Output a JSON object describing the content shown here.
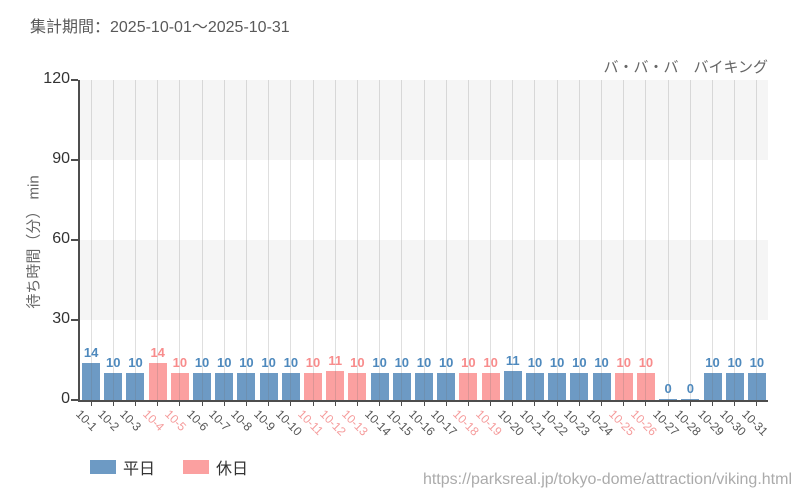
{
  "header": {
    "title": "集計期間：2025-10-01～2025-10-31"
  },
  "chart": {
    "attraction_title": "バ・バ・バ　バイキング",
    "y_axis_label": "待ち時間（分） min"
  },
  "legend": {
    "weekday_label": "平日",
    "holiday_label": "休日"
  },
  "footer": {
    "url": "https://parksreal.jp/tokyo-dome/attraction/viking.html"
  },
  "colors": {
    "weekday_bar": "#6d9ac4",
    "holiday_bar": "#fba0a0",
    "weekday_value_label": "#4e89bd",
    "holiday_value_label": "#f88c8c",
    "weekday_tick_label": "#555555",
    "holiday_tick_label": "#f59b9b",
    "axis": "#4d4d4d",
    "gridline": "rgba(110,110,110,0.22)",
    "band_gray": "#f5f5f5",
    "band_white": "#ffffff"
  },
  "chart_data": {
    "type": "bar",
    "title": "バ・バ・バ　バイキング",
    "xlabel": "",
    "ylabel": "待ち時間（分） min",
    "ylim": [
      0,
      120
    ],
    "y_ticks": [
      0,
      30,
      60,
      90,
      120
    ],
    "grid": {
      "vertical_lines_at_categories": true,
      "horizontal_bands_every": 30
    },
    "legend_position": "bottom-left",
    "legend": [
      {
        "label": "平日",
        "series": "weekday"
      },
      {
        "label": "休日",
        "series": "holiday"
      }
    ],
    "categories": [
      "10-1",
      "10-2",
      "10-3",
      "10-4",
      "10-5",
      "10-6",
      "10-7",
      "10-8",
      "10-9",
      "10-10",
      "10-11",
      "10-12",
      "10-13",
      "10-14",
      "10-15",
      "10-16",
      "10-17",
      "10-18",
      "10-19",
      "10-20",
      "10-21",
      "10-22",
      "10-23",
      "10-24",
      "10-25",
      "10-26",
      "10-27",
      "10-28",
      "10-29",
      "10-30",
      "10-31"
    ],
    "values": [
      14,
      10,
      10,
      14,
      10,
      10,
      10,
      10,
      10,
      10,
      10,
      11,
      10,
      10,
      10,
      10,
      10,
      10,
      10,
      11,
      10,
      10,
      10,
      10,
      10,
      10,
      0,
      0,
      10,
      10,
      10
    ],
    "day_type": [
      "weekday",
      "weekday",
      "weekday",
      "holiday",
      "holiday",
      "weekday",
      "weekday",
      "weekday",
      "weekday",
      "weekday",
      "holiday",
      "holiday",
      "holiday",
      "weekday",
      "weekday",
      "weekday",
      "weekday",
      "holiday",
      "holiday",
      "weekday",
      "weekday",
      "weekday",
      "weekday",
      "weekday",
      "holiday",
      "holiday",
      "weekday",
      "weekday",
      "weekday",
      "weekday",
      "weekday"
    ]
  }
}
